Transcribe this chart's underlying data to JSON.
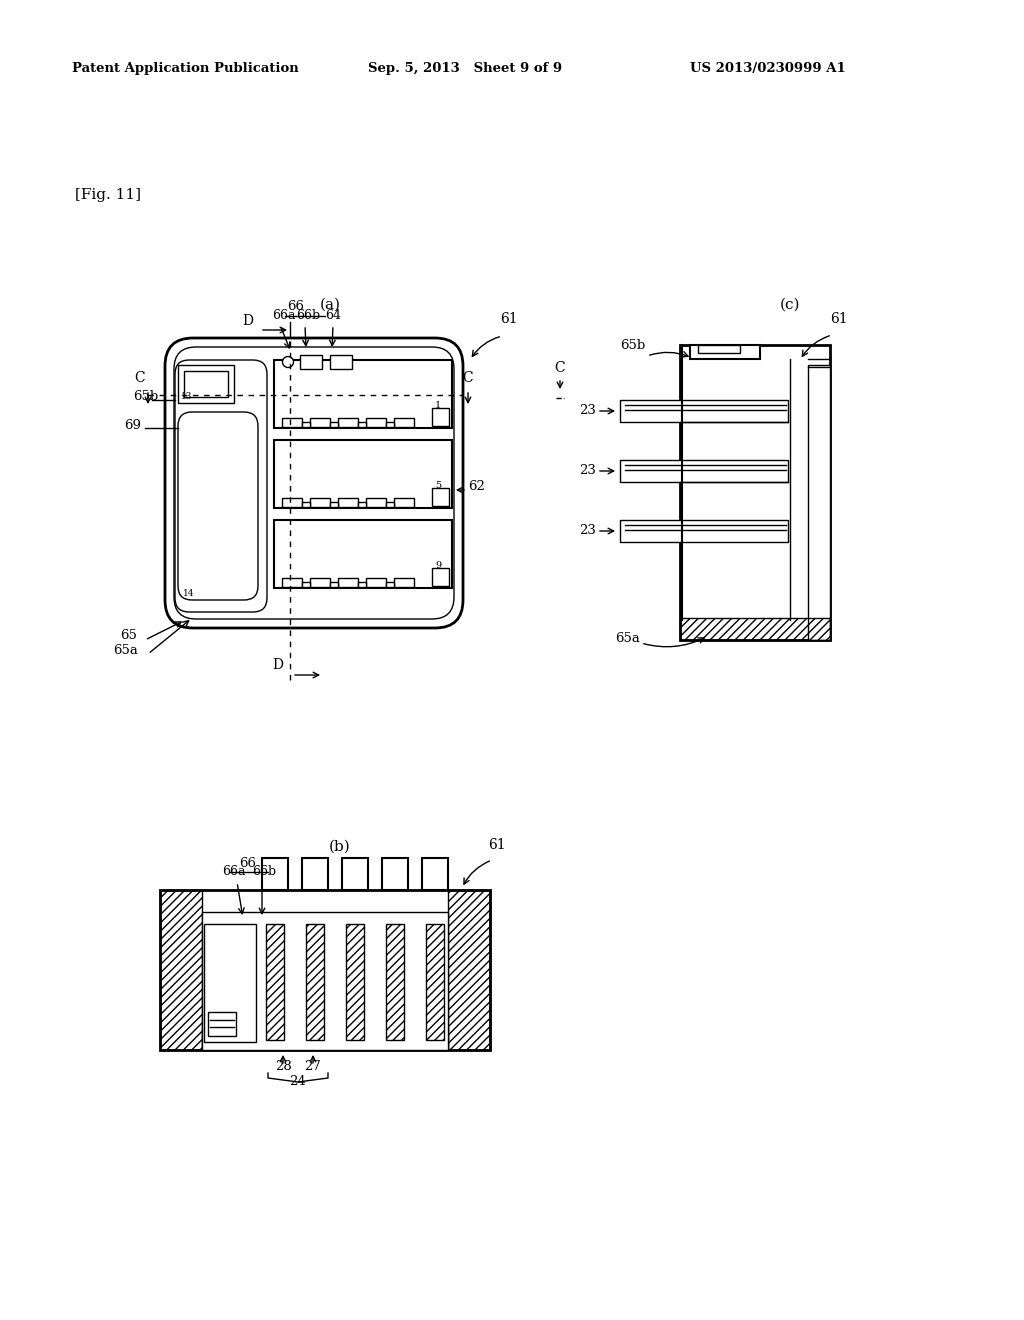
{
  "bg_color": "#ffffff",
  "header_left": "Patent Application Publication",
  "header_mid": "Sep. 5, 2013   Sheet 9 of 9",
  "header_right": "US 2013/0230999 A1",
  "fig_label": "[Fig. 11]",
  "sub_a": "(a)",
  "sub_b": "(b)",
  "sub_c": "(c)",
  "lw_thin": 1.0,
  "lw_med": 1.5,
  "lw_thick": 2.0
}
